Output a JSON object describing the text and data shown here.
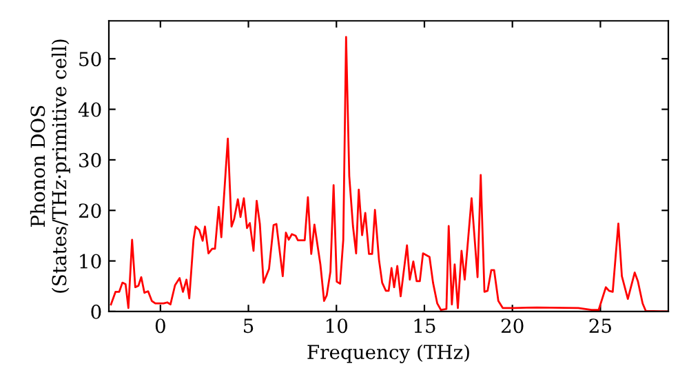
{
  "chart_data": {
    "type": "line",
    "xlabel": "Frequency (THz)",
    "ylabel": "Phonon DOS\n(States/THz·primitive cell)",
    "xlim": [
      -2.93,
      28.86
    ],
    "ylim": [
      0,
      57.5
    ],
    "xticks": [
      0,
      5,
      10,
      15,
      20,
      25
    ],
    "yticks": [
      0,
      10,
      20,
      30,
      40,
      50
    ],
    "grid": false,
    "marker": "none",
    "line_style": "solid",
    "series": [
      {
        "color": "#ff0000",
        "x": [
          -2.81,
          -2.55,
          -2.34,
          -2.16,
          -1.98,
          -1.82,
          -1.61,
          -1.43,
          -1.25,
          -1.09,
          -0.91,
          -0.7,
          -0.49,
          -0.29,
          0.18,
          0.39,
          0.57,
          0.83,
          1.09,
          1.28,
          1.48,
          1.64,
          1.88,
          2.0,
          2.21,
          2.4,
          2.53,
          2.73,
          2.94,
          3.1,
          3.31,
          3.46,
          3.83,
          4.04,
          4.19,
          4.4,
          4.55,
          4.74,
          4.92,
          5.08,
          5.29,
          5.47,
          5.65,
          5.86,
          6.17,
          6.43,
          6.59,
          6.95,
          7.13,
          7.29,
          7.47,
          7.68,
          7.81,
          8.2,
          8.38,
          8.57,
          8.75,
          9.09,
          9.3,
          9.45,
          9.66,
          9.84,
          10.02,
          10.21,
          10.39,
          10.55,
          10.73,
          10.94,
          11.12,
          11.27,
          11.46,
          11.64,
          11.85,
          12.03,
          12.19,
          12.42,
          12.6,
          12.81,
          12.97,
          13.13,
          13.28,
          13.46,
          13.65,
          14.01,
          14.17,
          14.37,
          14.56,
          14.74,
          14.92,
          15.29,
          15.49,
          15.73,
          15.94,
          16.25,
          16.38,
          16.56,
          16.72,
          16.9,
          17.11,
          17.29,
          17.68,
          18.02,
          18.2,
          18.41,
          18.59,
          18.8,
          18.96,
          19.2,
          19.45,
          20.1,
          21.4,
          23.75,
          24.5,
          24.9,
          25.31,
          25.49,
          25.7,
          26.02,
          26.22,
          26.56,
          26.95,
          27.13,
          27.4,
          27.58,
          28.83
        ],
        "values": [
          1.4,
          3.9,
          3.9,
          5.7,
          5.4,
          0.7,
          14.2,
          4.8,
          5.1,
          6.8,
          3.7,
          4.0,
          2.1,
          1.6,
          1.6,
          1.8,
          1.4,
          5.2,
          6.6,
          3.9,
          6.3,
          2.6,
          14.2,
          16.8,
          16.1,
          14.0,
          16.8,
          11.5,
          12.4,
          12.4,
          20.7,
          14.7,
          34.2,
          16.8,
          18.3,
          22.2,
          18.7,
          22.4,
          16.5,
          17.5,
          12.0,
          21.9,
          17.3,
          5.7,
          8.4,
          17.1,
          17.3,
          7.0,
          15.6,
          14.2,
          15.3,
          15.0,
          14.1,
          14.1,
          22.6,
          11.4,
          17.2,
          9.3,
          2.1,
          3.2,
          7.9,
          25.0,
          5.9,
          5.5,
          14.2,
          54.3,
          26.8,
          16.9,
          11.5,
          24.1,
          15.1,
          19.5,
          11.4,
          11.4,
          20.1,
          10.2,
          5.7,
          4.1,
          4.1,
          8.6,
          4.8,
          9.0,
          3.0,
          13.1,
          6.3,
          9.9,
          6.0,
          6.0,
          11.5,
          10.8,
          5.7,
          1.6,
          0.3,
          0.5,
          16.9,
          1.4,
          9.3,
          0.7,
          12.0,
          6.3,
          22.4,
          6.8,
          27.0,
          3.9,
          4.1,
          8.2,
          8.2,
          2.1,
          0.7,
          0.7,
          0.8,
          0.7,
          0.3,
          0.3,
          4.8,
          4.1,
          3.9,
          17.4,
          7.0,
          2.5,
          7.7,
          6.0,
          1.6,
          0.1,
          0
        ]
      }
    ]
  }
}
